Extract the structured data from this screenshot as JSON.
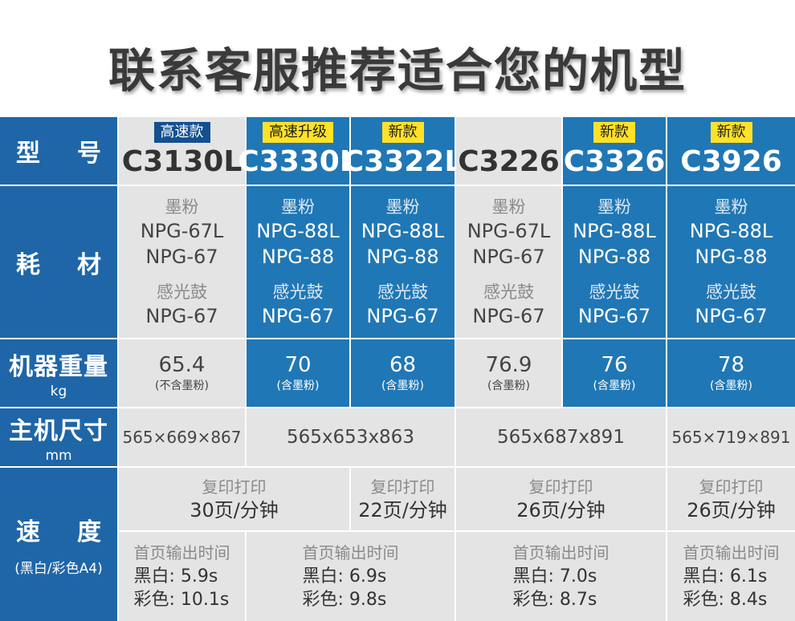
{
  "title": "联系客服推荐适合您的机型",
  "row_headers": {
    "model": [
      "型",
      "号"
    ],
    "consumables": [
      "耗",
      "材"
    ],
    "weight": {
      "main": "机器重量",
      "unit": "kg"
    },
    "size": {
      "main": "主机尺寸",
      "unit": "mm"
    },
    "speed": {
      "chars": [
        "速",
        "度"
      ],
      "sub": "(黑白/彩色A4)"
    }
  },
  "models": [
    {
      "badge": "高速款",
      "name": "C3130L"
    },
    {
      "badge": "高速升级",
      "name": "C3330L"
    },
    {
      "badge": "新款",
      "name": "C3322L"
    },
    {
      "badge": "",
      "name": "C3226"
    },
    {
      "badge": "新款",
      "name": "C3326"
    },
    {
      "badge": "新款",
      "name": "C3926"
    }
  ],
  "consumables": [
    {
      "toner_label": "墨粉",
      "toner_a": "NPG-67L",
      "toner_b": "NPG-67",
      "drum_label": "感光鼓",
      "drum": "NPG-67"
    },
    {
      "toner_label": "墨粉",
      "toner_a": "NPG-88L",
      "toner_b": "NPG-88",
      "drum_label": "感光鼓",
      "drum": "NPG-67"
    },
    {
      "toner_label": "墨粉",
      "toner_a": "NPG-88L",
      "toner_b": "NPG-88",
      "drum_label": "感光鼓",
      "drum": "NPG-67"
    },
    {
      "toner_label": "墨粉",
      "toner_a": "NPG-67L",
      "toner_b": "NPG-67",
      "drum_label": "感光鼓",
      "drum": "NPG-67"
    },
    {
      "toner_label": "墨粉",
      "toner_a": "NPG-88L",
      "toner_b": "NPG-88",
      "drum_label": "感光鼓",
      "drum": "NPG-67"
    },
    {
      "toner_label": "墨粉",
      "toner_a": "NPG-88L",
      "toner_b": "NPG-88",
      "drum_label": "感光鼓",
      "drum": "NPG-67"
    }
  ],
  "weights": [
    {
      "value": "65.4",
      "note": "(不含墨粉)"
    },
    {
      "value": "70",
      "note": "(含墨粉)"
    },
    {
      "value": "68",
      "note": "(含墨粉)"
    },
    {
      "value": "76.9",
      "note": "(含墨粉)"
    },
    {
      "value": "76",
      "note": "(含墨粉)"
    },
    {
      "value": "78",
      "note": "(含墨粉)"
    }
  ],
  "sizes": [
    "565×669×867",
    "565x653x863",
    "565x687x891",
    "565×719×891"
  ],
  "copy_speed": [
    {
      "label": "复印打印",
      "value": "30页/分钟"
    },
    {
      "label": "复印打印",
      "value": "22页/分钟"
    },
    {
      "label": "复印打印",
      "value": "26页/分钟"
    },
    {
      "label": "复印打印",
      "value": "26页/分钟"
    }
  ],
  "first_print": [
    {
      "label": "首页输出时间",
      "bw": "黑白: 5.9s",
      "color": "彩色: 10.1s"
    },
    {
      "label": "首页输出时间",
      "bw": "黑白: 6.9s",
      "color": "彩色: 9.8s"
    },
    {
      "label": "首页输出时间",
      "bw": "黑白: 7.0s",
      "color": "彩色: 8.7s"
    },
    {
      "label": "首页输出时间",
      "bw": "黑白: 6.1s",
      "color": "彩色: 8.4s"
    }
  ],
  "colors": {
    "row_header": "#1f66a8",
    "blue_cell": "#2077b5",
    "gray_cell": "#e4e4e4",
    "badge_navy": "#14508f",
    "badge_yellow": "#ffe227"
  }
}
